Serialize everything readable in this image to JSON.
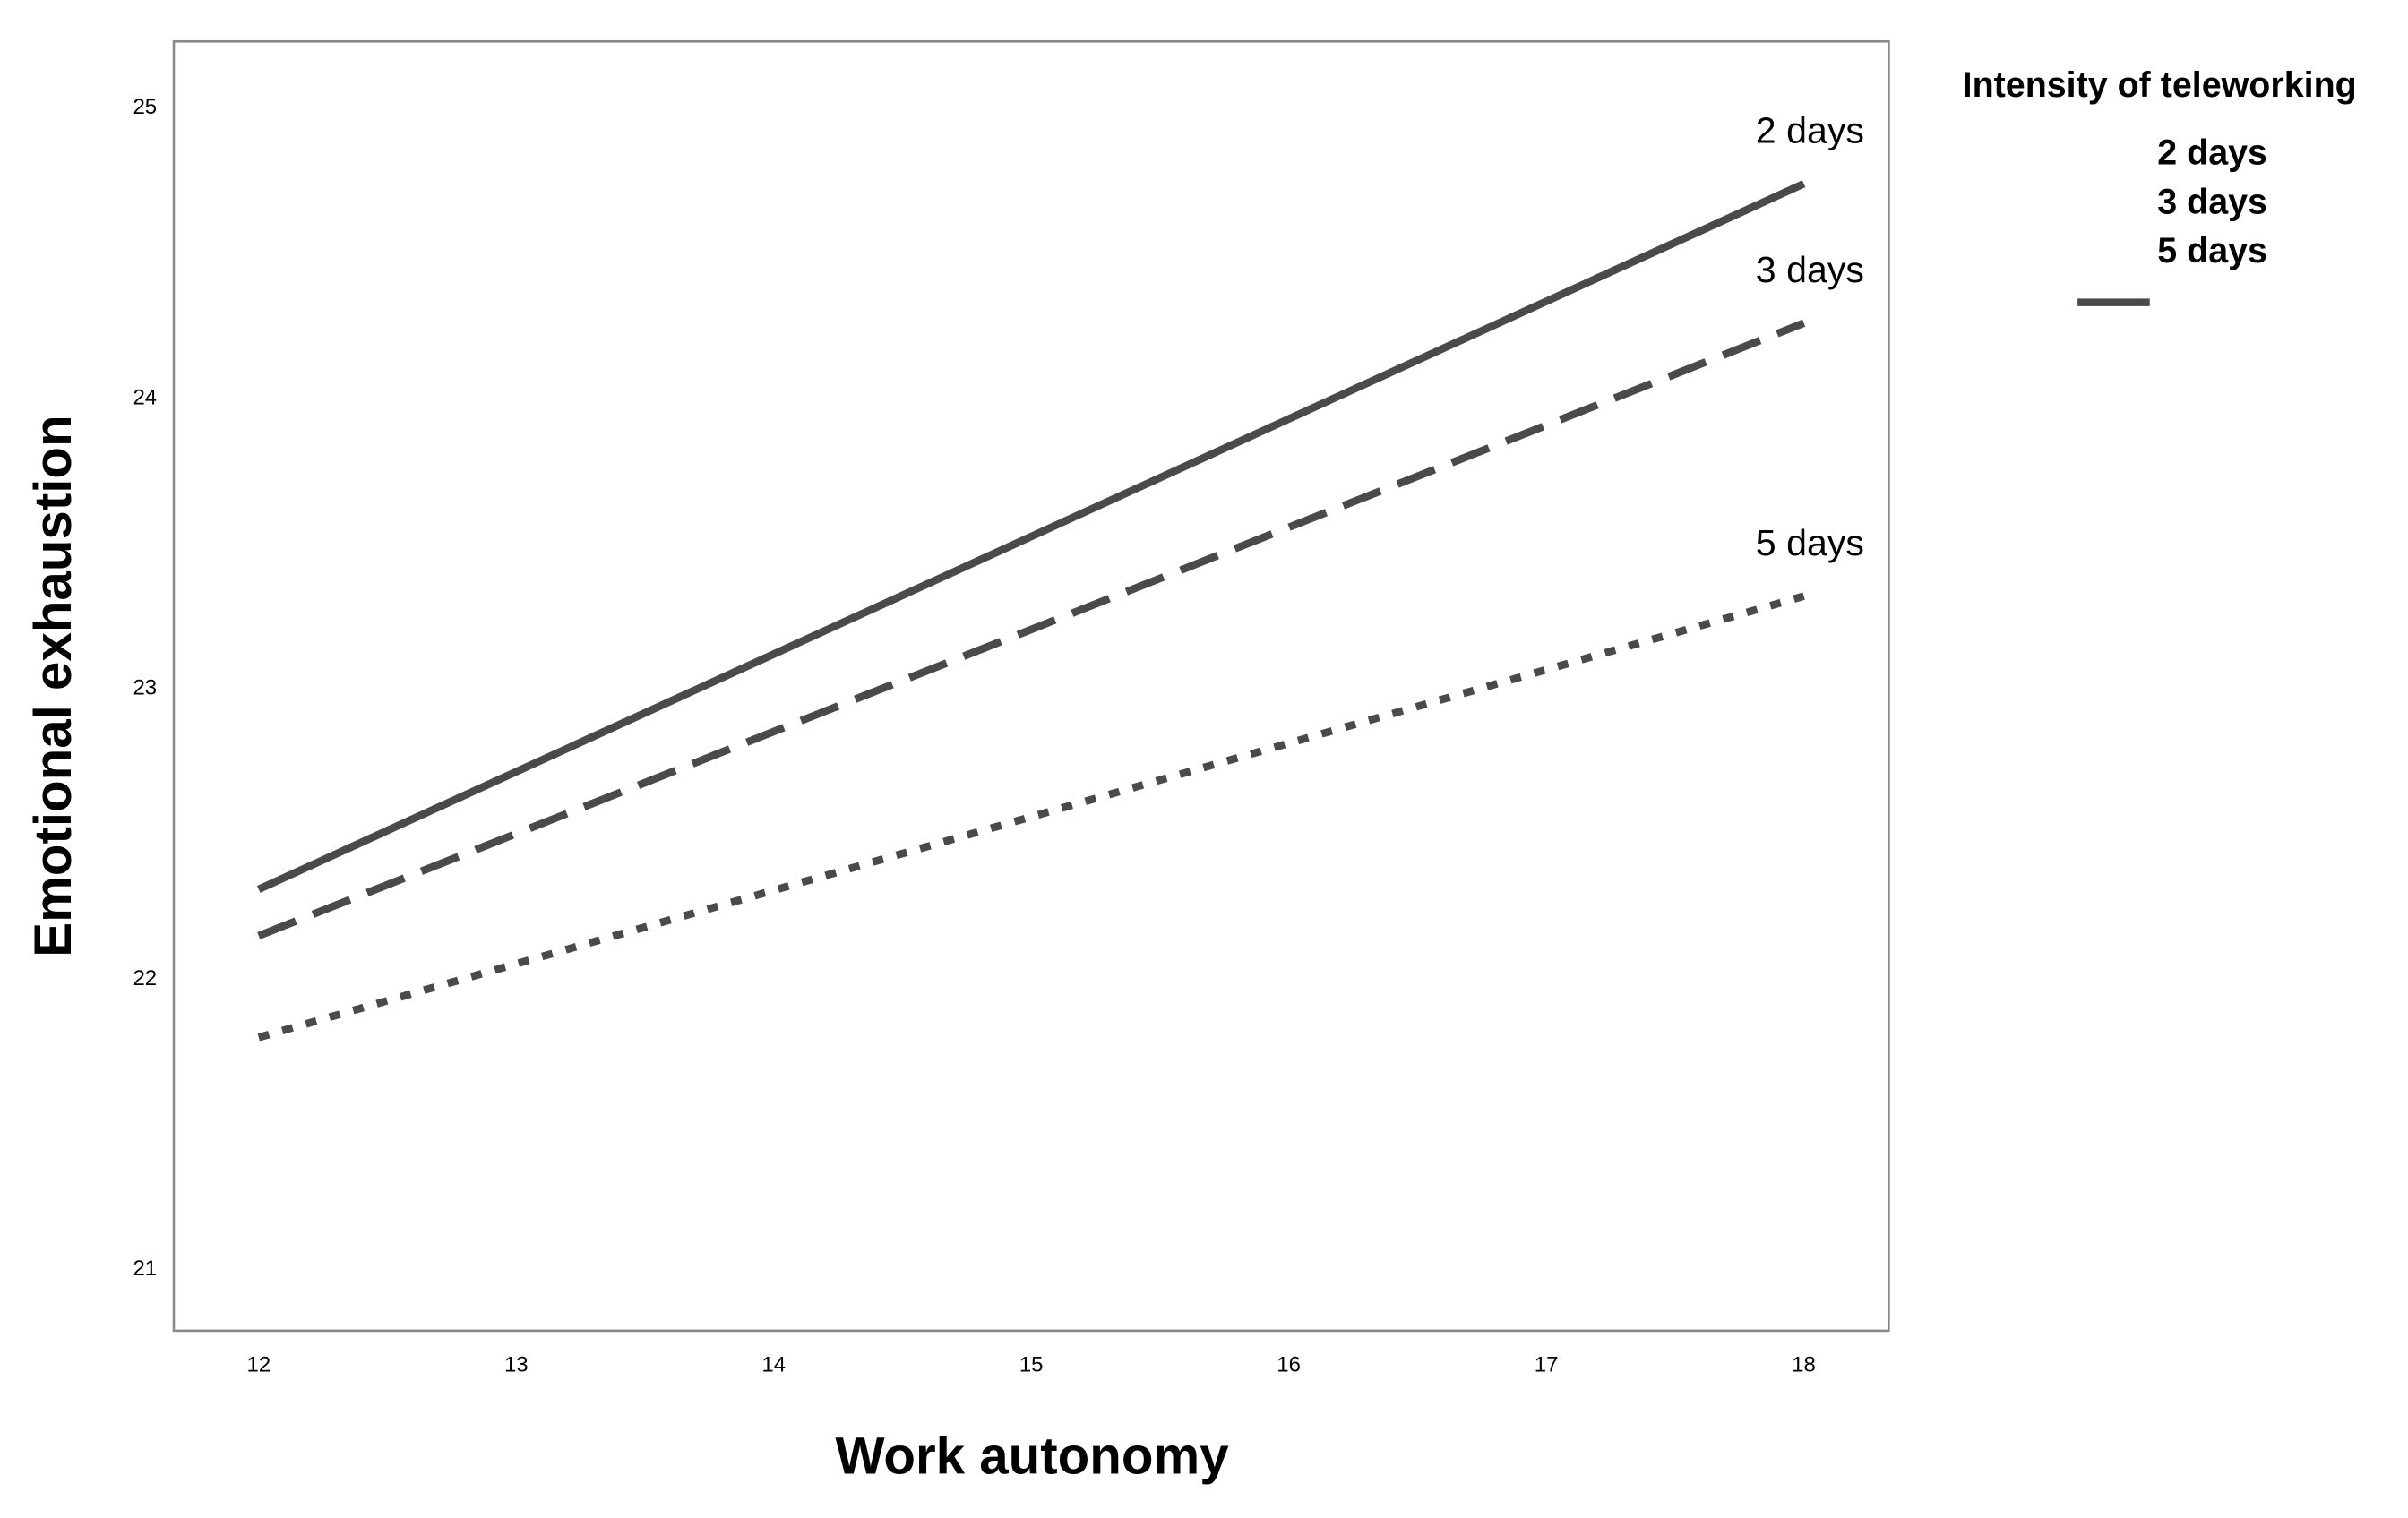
{
  "chart_data": {
    "type": "line",
    "x_label": "Work autonomy",
    "y_label": "Emotional exhaustion",
    "legend_title": "Intensity of teleworking",
    "x": [
      12,
      18
    ],
    "series": [
      {
        "name": "2 days",
        "color": "#4a4a4a",
        "style": "solid",
        "values": [
          22.31,
          24.74
        ]
      },
      {
        "name": "3 days",
        "color": "#4a4a4a",
        "style": "dashed",
        "values": [
          22.15,
          24.26
        ]
      },
      {
        "name": "5 days",
        "color": "#4a4a4a",
        "style": "dotted",
        "values": [
          21.8,
          23.32
        ]
      }
    ],
    "xlim": [
      11.67,
      18.33
    ],
    "xticks": [
      12,
      13,
      14,
      15,
      16,
      17,
      18
    ],
    "ylim": [
      20.79,
      25.23
    ],
    "yticks": [
      21,
      22,
      23,
      24,
      25
    ],
    "grid": false
  }
}
